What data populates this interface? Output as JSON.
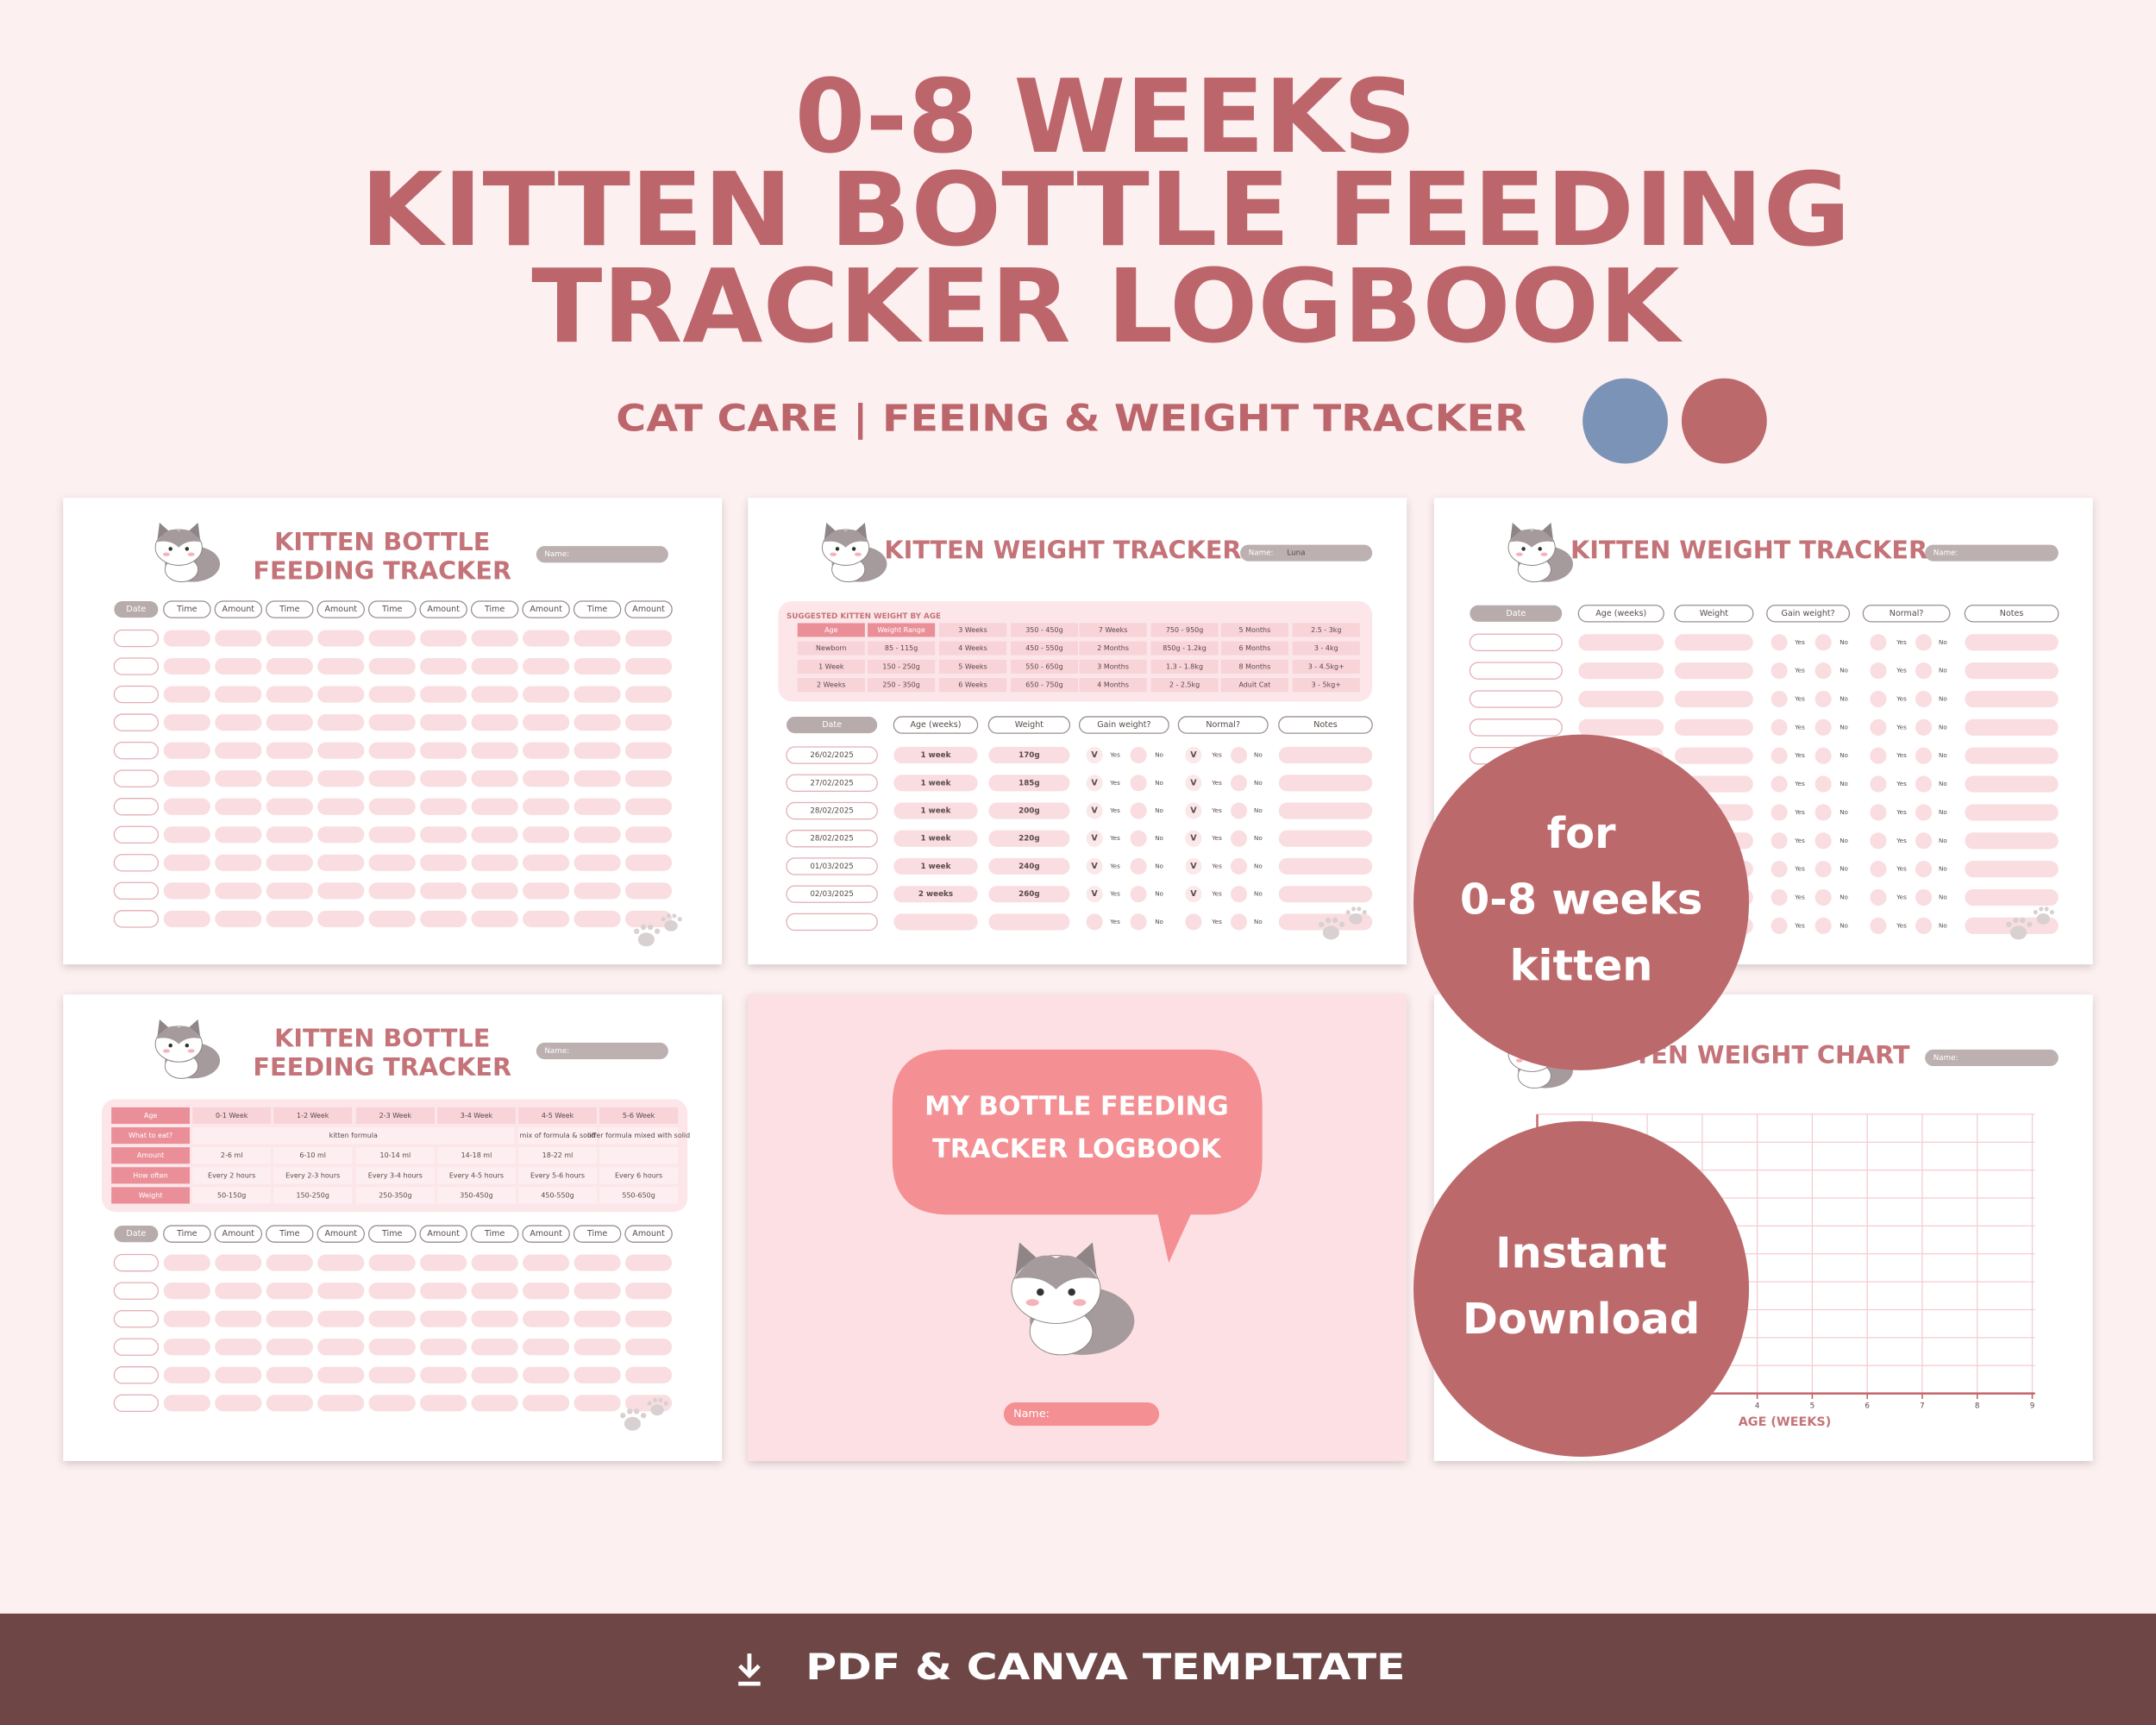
{
  "header": {
    "title_lines": [
      "0-8 WEEKS",
      "KITTEN BOTTLE FEEDING",
      "TRACKER LOGBOOK"
    ],
    "subtitle": "CAT CARE | FEEING & WEIGHT TRACKER"
  },
  "feeding_panel": {
    "title_lines": [
      "KITTEN BOTTLE",
      "FEEDING TRACKER"
    ],
    "name_label": "Name:",
    "columns": [
      "Date",
      "Time",
      "Amount",
      "Time",
      "Amount",
      "Time",
      "Amount",
      "Time",
      "Amount",
      "Time",
      "Amount"
    ]
  },
  "weight_panel": {
    "title": "KITTEN WEIGHT TRACKER",
    "name_label": "Name:",
    "name_value": "Luna",
    "reference_title": "SUGGESTED KITTEN WEIGHT BY AGE",
    "reference_rows": [
      [
        "Age",
        "Weight Range",
        "3 Weeks",
        "350 - 450g",
        "7 Weeks",
        "750 - 950g",
        "5 Months",
        "2.5 - 3kg"
      ],
      [
        "Newborn",
        "85 - 115g",
        "4 Weeks",
        "450 - 550g",
        "2 Months",
        "850g - 1.2kg",
        "6 Months",
        "3 - 4kg"
      ],
      [
        "1 Week",
        "150 - 250g",
        "5 Weeks",
        "550 - 650g",
        "3 Months",
        "1.3 - 1.8kg",
        "8 Months",
        "3 - 4.5kg+"
      ],
      [
        "2 Weeks",
        "250 - 350g",
        "6 Weeks",
        "650 - 750g",
        "4 Months",
        "2 - 2.5kg",
        "Adult Cat",
        "3 - 5kg+"
      ]
    ],
    "columns": [
      "Date",
      "Age (weeks)",
      "Weight",
      "Gain weight?",
      "Normal?",
      "Notes"
    ],
    "rows": [
      [
        "26/02/2025",
        "1 week",
        "170g"
      ],
      [
        "27/02/2025",
        "1 week",
        "185g"
      ],
      [
        "28/02/2025",
        "1 week",
        "200g"
      ],
      [
        "28/02/2025",
        "1 week",
        "220g"
      ],
      [
        "01/03/2025",
        "1 week",
        "240g"
      ],
      [
        "02/03/2025",
        "2 weeks",
        "260g"
      ]
    ],
    "check": "V",
    "yes": "Yes",
    "no": "No"
  },
  "feeding_guide": {
    "rows": [
      [
        "Age",
        "0-1 Week",
        "1-2 Week",
        "2-3 Week",
        "3-4 Week",
        "4-5 Week",
        "5-6 Week"
      ],
      [
        "What to eat?",
        "kitten formula",
        "mix of formula & solid",
        "offer formula mixed with solid"
      ],
      [
        "Amount",
        "2-6 ml",
        "6-10 ml",
        "10-14 ml",
        "14-18 ml",
        "18-22 ml"
      ],
      [
        "How often",
        "Every 2 hours",
        "Every 2-3 hours",
        "Every 3-4 hours",
        "Every 4-5 hours",
        "Every 5-6 hours",
        "Every 6 hours"
      ],
      [
        "Weight",
        "50-150g",
        "150-250g",
        "250-350g",
        "350-450g",
        "450-550g",
        "550-650g"
      ]
    ]
  },
  "cover": {
    "title_lines": [
      "MY BOTTLE FEEDING",
      "TRACKER LOGBOOK"
    ],
    "name_label": "Name:"
  },
  "chart_panel": {
    "title": "KITTEN WEIGHT CHART",
    "name_label": "Name:",
    "x_label": "AGE (WEEKS)",
    "x_ticks": [
      4,
      5,
      6,
      7,
      8,
      9
    ]
  },
  "badges": [
    [
      "for",
      "0-8 weeks",
      "kitten"
    ],
    [
      "Instant",
      "Download"
    ]
  ],
  "footer": "PDF & CANVA TEMPLTATE"
}
